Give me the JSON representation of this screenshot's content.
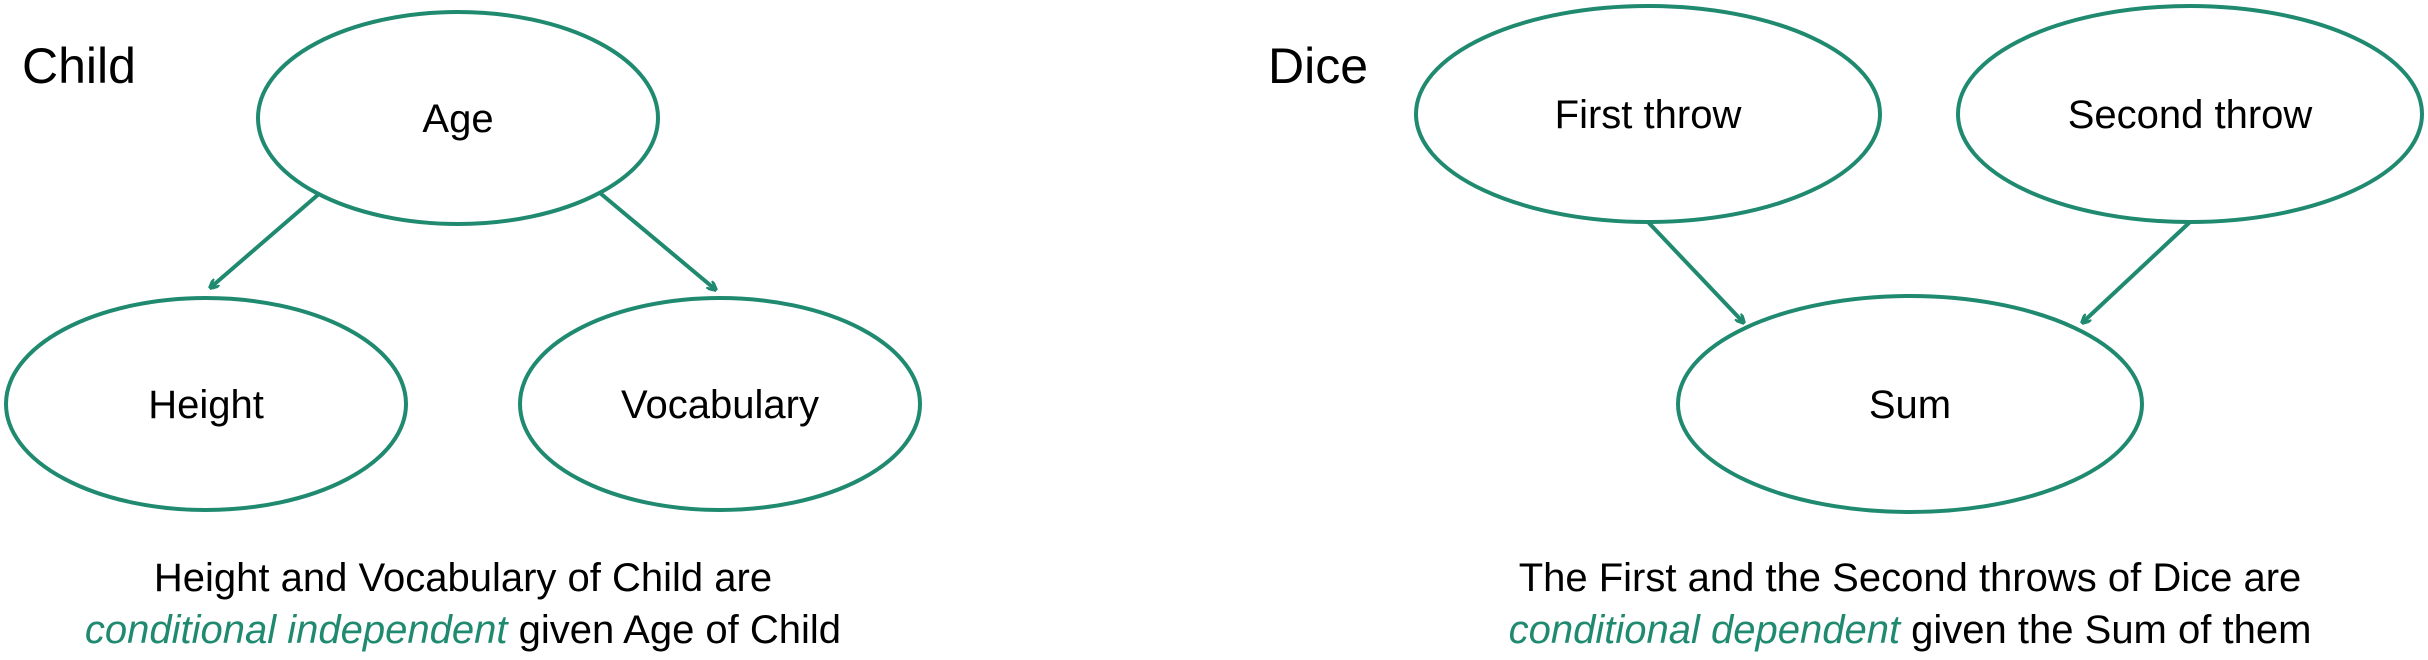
{
  "accent_color": "#1f8a70",
  "panels": [
    {
      "title": "Child",
      "nodes": [
        {
          "id": "age",
          "label": "Age"
        },
        {
          "id": "height",
          "label": "Height"
        },
        {
          "id": "vocab",
          "label": "Vocabulary"
        }
      ],
      "edges": [
        {
          "from": "age",
          "to": "height"
        },
        {
          "from": "age",
          "to": "vocab"
        }
      ],
      "caption": {
        "line1": "Height and Vocabulary of Child are",
        "em": "conditional independent",
        "rest": " given Age of Child"
      }
    },
    {
      "title": "Dice",
      "nodes": [
        {
          "id": "first",
          "label": "First throw"
        },
        {
          "id": "second",
          "label": "Second throw"
        },
        {
          "id": "sum",
          "label": "Sum"
        }
      ],
      "edges": [
        {
          "from": "first",
          "to": "sum"
        },
        {
          "from": "second",
          "to": "sum"
        }
      ],
      "caption": {
        "line1": "The First and the Second throws of Dice are",
        "em": "conditional dependent",
        "rest": " given the Sum of them"
      }
    }
  ]
}
